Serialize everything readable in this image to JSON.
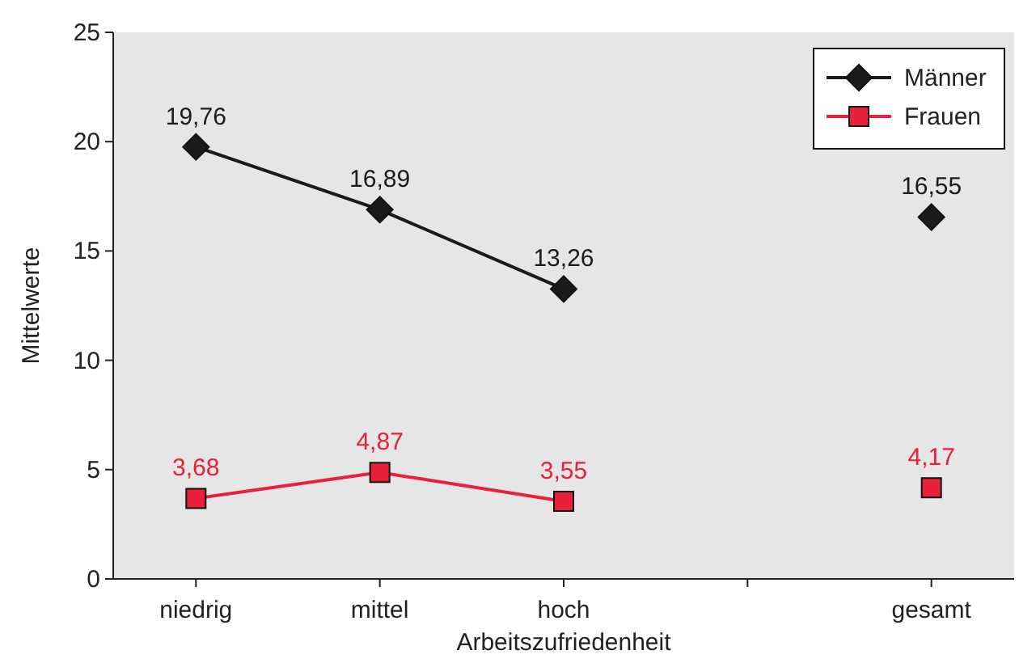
{
  "chart_data": {
    "type": "line",
    "xlabel": "Arbeitszufriedenheit",
    "ylabel": "Mittelwerte",
    "categories": [
      "niedrig",
      "mittel",
      "hoch",
      null,
      "gesamt"
    ],
    "ylim": [
      0,
      25
    ],
    "yticks": [
      0,
      5,
      10,
      15,
      20,
      25
    ],
    "grid": false,
    "legend": "top right",
    "series": [
      {
        "name": "Männer",
        "color": "#1a1a1a",
        "marker": "diamond",
        "values": [
          19.76,
          16.89,
          13.26,
          null,
          16.55
        ],
        "value_labels": [
          "19,76",
          "16,89",
          "13,26",
          null,
          "16,55"
        ]
      },
      {
        "name": "Frauen",
        "color": "#e8203a",
        "marker": "square",
        "values": [
          3.68,
          4.87,
          3.55,
          null,
          4.17
        ],
        "value_labels": [
          "3,68",
          "4,87",
          "3,55",
          null,
          "4,17"
        ]
      }
    ]
  }
}
